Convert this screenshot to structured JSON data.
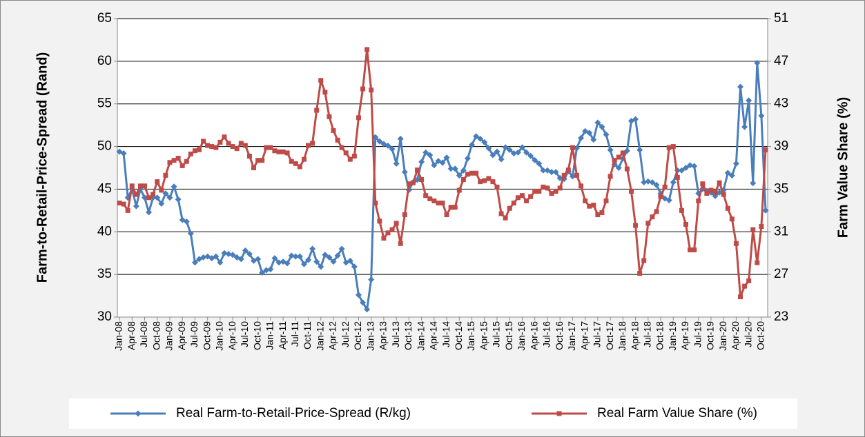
{
  "chart_data": {
    "type": "line",
    "y_label": "Farm-to-Retail-Price-Spread (Rand)",
    "y2_label": "Farm Value Share (%)",
    "categories": [
      "Jan-08",
      null,
      null,
      "Apr-08",
      null,
      null,
      "Jul-08",
      null,
      null,
      "Oct-08",
      null,
      null,
      "Jan-09",
      null,
      null,
      "Apr-09",
      null,
      null,
      "Jul-09",
      null,
      null,
      "Oct-09",
      null,
      null,
      "Jan-10",
      null,
      null,
      "Apr-10",
      null,
      null,
      "Jul-10",
      null,
      null,
      "Oct-10",
      null,
      null,
      "Jan-11",
      null,
      null,
      "Apr-11",
      null,
      null,
      "Jul-11",
      null,
      null,
      "Oct-11",
      null,
      null,
      "Jan-12",
      null,
      null,
      "Apr-12",
      null,
      null,
      "Jul-12",
      null,
      null,
      "Oct-12",
      null,
      null,
      "Jan-13",
      null,
      null,
      "Apr-13",
      null,
      null,
      "Jul-13",
      null,
      null,
      "Oct-13",
      null,
      null,
      "Jan-14",
      null,
      null,
      "Apr-14",
      null,
      null,
      "Jul-14",
      null,
      null,
      "Oct-14",
      null,
      null,
      "Jan-15",
      null,
      null,
      "Apr-15",
      null,
      null,
      "Jul-15",
      null,
      null,
      "Oct-15",
      null,
      null,
      "Jan-16",
      null,
      null,
      "Apr-16",
      null,
      null,
      "Jul-16",
      null,
      null,
      "Oct-16",
      null,
      null,
      "Jan-17",
      null,
      null,
      "Apr-17",
      null,
      null,
      "Jul-17",
      null,
      null,
      "Oct-17",
      null,
      null,
      "Jan-18",
      null,
      null,
      "Apr-18",
      null,
      null,
      "Jul-18",
      null,
      null,
      "Oct-18",
      null,
      null,
      "Jan-19",
      null,
      null,
      "Apr-19",
      null,
      null,
      "Jul-19",
      null,
      null,
      "Oct-19",
      null,
      null,
      "Jan-20",
      null,
      null,
      "Apr-20",
      null,
      null,
      "Jul-20",
      null,
      null,
      "Oct-20",
      null
    ],
    "series": [
      {
        "name": "Real Farm-to-Retail-Price-Spread (R/kg)",
        "color": "#4a7ebb",
        "marker": "diamond",
        "values": [
          49.4,
          49.2,
          44,
          45,
          43,
          45,
          44,
          42.3,
          44,
          44,
          43.3,
          44.5,
          44,
          45.3,
          43.8,
          41.4,
          41.2,
          39.8,
          36.4,
          36.8,
          37,
          37.1,
          36.9,
          37.1,
          36.4,
          37.5,
          37.4,
          37.3,
          37,
          36.8,
          37.8,
          37.4,
          36.6,
          36.8,
          35.2,
          35.5,
          35.6,
          36.9,
          36.4,
          36.5,
          36.3,
          37.2,
          37.1,
          37.1,
          36.2,
          36.7,
          38,
          36.5,
          35.9,
          37.3,
          37,
          36.5,
          37.2,
          38,
          36.4,
          36.6,
          35.9,
          32.6,
          31.7,
          30.9,
          34.4,
          51.1,
          50.6,
          50.3,
          50.1,
          49.7,
          48,
          50.9,
          47,
          44.9,
          45.8,
          46.1,
          48.2,
          49.3,
          49,
          47.8,
          48.3,
          48.1,
          48.7,
          47.4,
          47.4,
          46.6,
          47.2,
          48.6,
          50.2,
          51.2,
          50.9,
          50.5,
          49.8,
          49,
          49.4,
          48.5,
          49.9,
          49.6,
          49.2,
          49.3,
          49.9,
          49.3,
          48.9,
          48.4,
          48,
          47.2,
          47.2,
          47,
          47,
          46.3,
          46.2,
          47.1,
          46.5,
          49.8,
          51,
          51.8,
          51.6,
          50.8,
          52.8,
          52.3,
          51.4,
          49.6,
          47.9,
          47.5,
          48.6,
          49.5,
          53,
          53.2,
          49.6,
          45.8,
          45.9,
          45.8,
          45.5,
          44.5,
          43.9,
          43.7,
          45.8,
          47.2,
          47.2,
          47.5,
          47.8,
          47.7,
          44.5,
          45,
          44.8,
          44.6,
          44.2,
          44.6,
          44.9,
          46.9,
          46.6,
          48,
          57,
          52.3,
          55.4,
          45.7,
          59.8,
          53.6,
          42.5
        ]
      },
      {
        "name": "Real Farm Value Share (%)",
        "color": "#be4b48",
        "marker": "square",
        "axis": "y2",
        "values": [
          33.7,
          33.6,
          33,
          35.3,
          34.5,
          35.3,
          35.3,
          34.2,
          34.5,
          35.7,
          34.9,
          36.3,
          37.5,
          37.7,
          37.9,
          37.2,
          37.6,
          38.3,
          38.6,
          38.7,
          39.5,
          39.1,
          39,
          38.9,
          39.4,
          39.9,
          39.3,
          39,
          38.8,
          39.3,
          39.1,
          38.1,
          37,
          37.7,
          37.7,
          38.9,
          38.9,
          38.6,
          38.5,
          38.5,
          38.4,
          37.6,
          37.4,
          37.1,
          37.8,
          39.1,
          39.3,
          42.4,
          45.2,
          44.1,
          41.8,
          40.5,
          39.6,
          38.9,
          38.4,
          37.8,
          38.1,
          41.7,
          44.4,
          48.1,
          44.3,
          33.7,
          32,
          30.4,
          30.9,
          31.2,
          31.8,
          29.9,
          32.6,
          35.5,
          35.6,
          36.8,
          35.9,
          34.4,
          34.1,
          33.9,
          33.7,
          33.7,
          32.6,
          33.3,
          33.3,
          34.9,
          35.9,
          36.4,
          36.5,
          36.5,
          35.7,
          35.8,
          36,
          35.7,
          35.2,
          32.7,
          32.3,
          33.2,
          33.7,
          34.2,
          34.4,
          33.9,
          34.3,
          34.8,
          34.8,
          35.2,
          35.1,
          34.6,
          34.8,
          35.1,
          36.3,
          36.8,
          38.9,
          36.3,
          35.3,
          33.9,
          33.4,
          33.5,
          32.6,
          32.8,
          33.9,
          36.2,
          37.7,
          38,
          38.4,
          36.9,
          34.8,
          31.6,
          27.1,
          28.3,
          31.8,
          32.4,
          32.9,
          34.3,
          35.2,
          38.9,
          39,
          36.1,
          33,
          31.7,
          29.3,
          29.3,
          33.9,
          35.5,
          34.6,
          34.9,
          34.7,
          35.6,
          34.5,
          33.2,
          32.2,
          29.9,
          24.9,
          25.9,
          26.4,
          31.2,
          28.1,
          31.5,
          38.7
        ]
      }
    ],
    "ylim": [
      30,
      65
    ],
    "yticks": [
      30,
      35,
      40,
      45,
      50,
      55,
      60,
      65
    ],
    "y2lim": [
      23,
      51
    ],
    "y2ticks": [
      23,
      27,
      31,
      35,
      39,
      43,
      47,
      51
    ],
    "grid": true,
    "legend": "bottom"
  }
}
